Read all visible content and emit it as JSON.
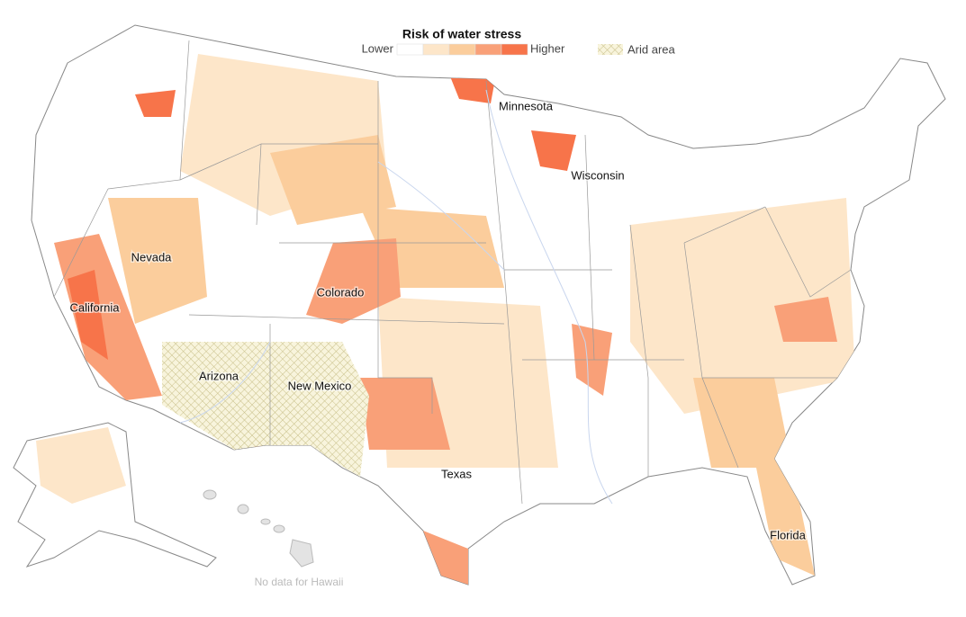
{
  "legend": {
    "title": "Risk of water stress",
    "low_label": "Lower",
    "high_label": "Higher",
    "colors": [
      "#ffffff",
      "#fde6c9",
      "#fbcd9c",
      "#f9a078",
      "#f7744a"
    ],
    "arid_label": "Arid area"
  },
  "labels": {
    "minnesota": "Minnesota",
    "wisconsin": "Wisconsin",
    "nevada": "Nevada",
    "colorado": "Colorado",
    "california": "California",
    "arizona": "Arizona",
    "new_mexico": "New Mexico",
    "texas": "Texas",
    "florida": "Florida"
  },
  "note": "No data for Hawaii"
}
